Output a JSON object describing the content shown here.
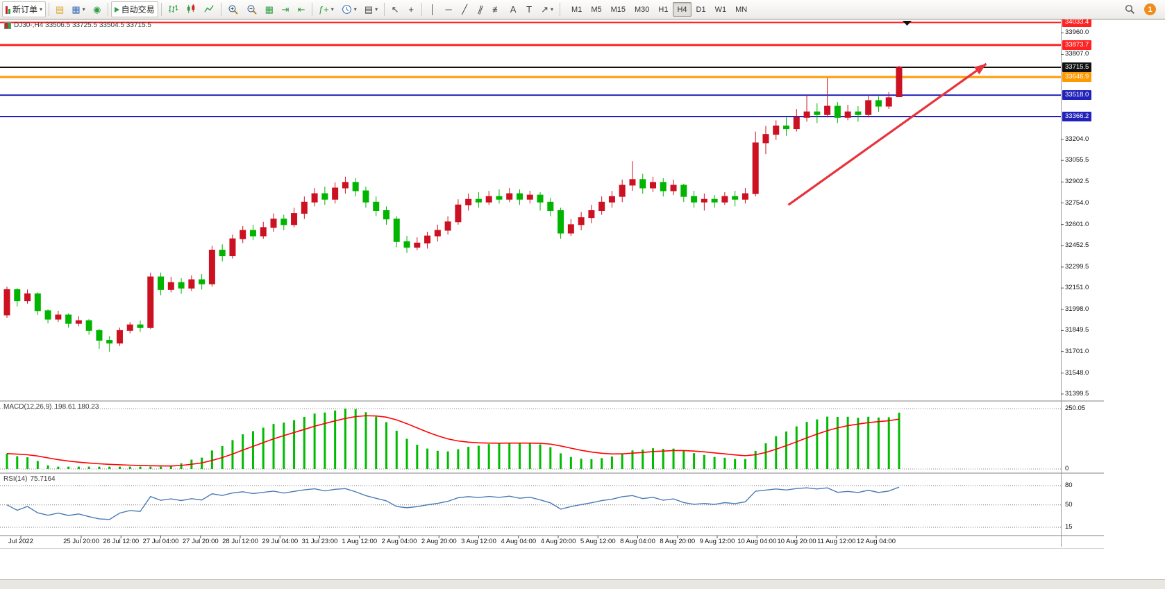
{
  "toolbar": {
    "new_order": "新订单",
    "autotrading": "自动交易",
    "timeframes": [
      "M1",
      "M5",
      "M15",
      "M30",
      "H1",
      "H4",
      "D1",
      "W1",
      "MN"
    ],
    "active_timeframe": "H4",
    "notification_badge": "1"
  },
  "icons": {
    "caret": "▾",
    "stack": "▤",
    "newchart": "▦",
    "profiles": "◉",
    "tile": "▦",
    "autoscroll": "⇥",
    "shift": "⇤",
    "indicators": "ƒ+",
    "templates": "▤",
    "cursor": "↖",
    "crosshair": "+",
    "vline": "│",
    "hline": "─",
    "tline": "╱",
    "channel": "∥",
    "fibo": "≢",
    "text": "A",
    "label": "T",
    "arrowtool": "↗"
  },
  "chart": {
    "symbol_line": "DJ30-,H4  33506.5 33725.5 33504.5 33715.5",
    "price_axis_labels": [
      "33960.0",
      "33807.0",
      "33204.0",
      "33055.5",
      "32902.5",
      "32754.0",
      "32601.0",
      "32452.5",
      "32299.5",
      "32151.0",
      "31998.0",
      "31849.5",
      "31701.0",
      "31548.0",
      "31399.5"
    ],
    "time_axis_labels": [
      "Jul 2022",
      "25 Jul 20:00",
      "26 Jul 12:00",
      "27 Jul 04:00",
      "27 Jul 20:00",
      "28 Jul 12:00",
      "29 Jul 04:00",
      "31 Jul 23:00",
      "1 Aug 12:00",
      "2 Aug 04:00",
      "2 Aug 20:00",
      "3 Aug 12:00",
      "4 Aug 04:00",
      "4 Aug 20:00",
      "5 Aug 12:00",
      "8 Aug 04:00",
      "8 Aug 20:00",
      "9 Aug 12:00",
      "10 Aug 04:00",
      "10 Aug 20:00",
      "11 Aug 12:00",
      "12 Aug 04:00"
    ]
  },
  "chart_data": {
    "type": "candlestick",
    "symbol": "DJ30-",
    "timeframe": "H4",
    "ylim": [
      31350,
      34055
    ],
    "colors": {
      "bull": "#cc1122",
      "bear": "#00b400",
      "macd_hist": "#00bb00",
      "macd_signal": "#ff0000",
      "rsi_line": "#4a7ab5",
      "arrow": "#e8323c"
    },
    "ohlc": [
      [
        31960,
        32160,
        31940,
        32140
      ],
      [
        32140,
        32150,
        32020,
        32060
      ],
      [
        32060,
        32140,
        32040,
        32110
      ],
      [
        32110,
        32120,
        31960,
        31990
      ],
      [
        31990,
        32000,
        31900,
        31930
      ],
      [
        31930,
        31990,
        31910,
        31960
      ],
      [
        31960,
        31970,
        31870,
        31900
      ],
      [
        31900,
        31950,
        31880,
        31920
      ],
      [
        31920,
        31930,
        31820,
        31850
      ],
      [
        31850,
        31860,
        31720,
        31780
      ],
      [
        31780,
        31810,
        31700,
        31760
      ],
      [
        31760,
        31870,
        31740,
        31850
      ],
      [
        31850,
        31910,
        31830,
        31890
      ],
      [
        31890,
        31920,
        31840,
        31870
      ],
      [
        31870,
        32260,
        31860,
        32230
      ],
      [
        32230,
        32260,
        32100,
        32140
      ],
      [
        32140,
        32230,
        32120,
        32190
      ],
      [
        32190,
        32220,
        32110,
        32150
      ],
      [
        32150,
        32240,
        32130,
        32210
      ],
      [
        32210,
        32250,
        32140,
        32180
      ],
      [
        32180,
        32450,
        32160,
        32420
      ],
      [
        32420,
        32460,
        32340,
        32380
      ],
      [
        32380,
        32530,
        32360,
        32500
      ],
      [
        32500,
        32590,
        32470,
        32560
      ],
      [
        32560,
        32600,
        32490,
        32520
      ],
      [
        32520,
        32620,
        32500,
        32580
      ],
      [
        32580,
        32680,
        32550,
        32640
      ],
      [
        32640,
        32670,
        32560,
        32600
      ],
      [
        32600,
        32720,
        32580,
        32680
      ],
      [
        32680,
        32800,
        32640,
        32760
      ],
      [
        32760,
        32860,
        32730,
        32820
      ],
      [
        32820,
        32870,
        32740,
        32780
      ],
      [
        32780,
        32900,
        32750,
        32860
      ],
      [
        32860,
        32940,
        32820,
        32900
      ],
      [
        32900,
        32930,
        32800,
        32840
      ],
      [
        32840,
        32870,
        32720,
        32760
      ],
      [
        32760,
        32800,
        32660,
        32700
      ],
      [
        32700,
        32730,
        32600,
        32640
      ],
      [
        32640,
        32660,
        32440,
        32480
      ],
      [
        32480,
        32520,
        32400,
        32440
      ],
      [
        32440,
        32510,
        32420,
        32470
      ],
      [
        32470,
        32550,
        32430,
        32520
      ],
      [
        32520,
        32600,
        32480,
        32560
      ],
      [
        32560,
        32660,
        32530,
        32620
      ],
      [
        32620,
        32780,
        32600,
        32740
      ],
      [
        32740,
        32820,
        32700,
        32780
      ],
      [
        32780,
        32830,
        32720,
        32760
      ],
      [
        32760,
        32840,
        32740,
        32800
      ],
      [
        32800,
        32850,
        32750,
        32780
      ],
      [
        32780,
        32860,
        32760,
        32820
      ],
      [
        32820,
        32850,
        32740,
        32780
      ],
      [
        32780,
        32840,
        32750,
        32810
      ],
      [
        32810,
        32830,
        32700,
        32760
      ],
      [
        32760,
        32790,
        32660,
        32700
      ],
      [
        32700,
        32720,
        32500,
        32540
      ],
      [
        32540,
        32640,
        32520,
        32600
      ],
      [
        32600,
        32690,
        32560,
        32650
      ],
      [
        32650,
        32740,
        32610,
        32700
      ],
      [
        32700,
        32800,
        32670,
        32760
      ],
      [
        32760,
        32840,
        32720,
        32800
      ],
      [
        32800,
        32920,
        32760,
        32880
      ],
      [
        32880,
        33050,
        32840,
        32920
      ],
      [
        32920,
        32960,
        32820,
        32860
      ],
      [
        32860,
        32940,
        32830,
        32900
      ],
      [
        32900,
        32930,
        32800,
        32840
      ],
      [
        32840,
        32920,
        32810,
        32880
      ],
      [
        32880,
        32890,
        32760,
        32800
      ],
      [
        32800,
        32840,
        32720,
        32760
      ],
      [
        32760,
        32820,
        32700,
        32780
      ],
      [
        32780,
        32810,
        32720,
        32760
      ],
      [
        32760,
        32830,
        32740,
        32800
      ],
      [
        32800,
        32840,
        32730,
        32780
      ],
      [
        32780,
        32860,
        32750,
        32820
      ],
      [
        32820,
        33260,
        32800,
        33180
      ],
      [
        33180,
        33300,
        33100,
        33240
      ],
      [
        33240,
        33340,
        33200,
        33300
      ],
      [
        33300,
        33360,
        33230,
        33280
      ],
      [
        33280,
        33420,
        33260,
        33360
      ],
      [
        33360,
        33520,
        33330,
        33400
      ],
      [
        33400,
        33460,
        33320,
        33380
      ],
      [
        33380,
        33640,
        33360,
        33440
      ],
      [
        33440,
        33470,
        33320,
        33360
      ],
      [
        33360,
        33450,
        33340,
        33400
      ],
      [
        33400,
        33440,
        33330,
        33380
      ],
      [
        33380,
        33520,
        33360,
        33480
      ],
      [
        33480,
        33510,
        33400,
        33440
      ],
      [
        33440,
        33540,
        33420,
        33500
      ],
      [
        33506.5,
        33725.5,
        33504.5,
        33715.5
      ]
    ],
    "horizontal_lines": [
      {
        "price": 34033.4,
        "color": "#ff2222",
        "label": "34033.4",
        "width": 2
      },
      {
        "price": 33873.7,
        "color": "#ff2222",
        "label": "33873.7",
        "width": 3
      },
      {
        "price": 33715.5,
        "color": "#111111",
        "label": "33715.5",
        "width": 2
      },
      {
        "price": 33646.9,
        "color": "#ff9900",
        "label": "33646.9",
        "width": 3
      },
      {
        "price": 33518.0,
        "color": "#2222bb",
        "label": "33518.0",
        "width": 2
      },
      {
        "price": 33366.2,
        "color": "#2222bb",
        "label": "33366.2",
        "width": 2
      }
    ],
    "trend_arrow": {
      "from_index": 76.2,
      "from_price": 32740,
      "to_index": 95.5,
      "to_price": 33740
    },
    "macd": {
      "title": "MACD(12,26,9)",
      "readout": "198.61 180.23",
      "params": [
        12,
        26,
        9
      ],
      "axis_labels": [
        "250.05",
        "0"
      ]
    },
    "rsi": {
      "title": "RSI(14)",
      "readout": "75.7164",
      "period": 14,
      "levels": [
        80,
        50,
        15
      ]
    }
  }
}
